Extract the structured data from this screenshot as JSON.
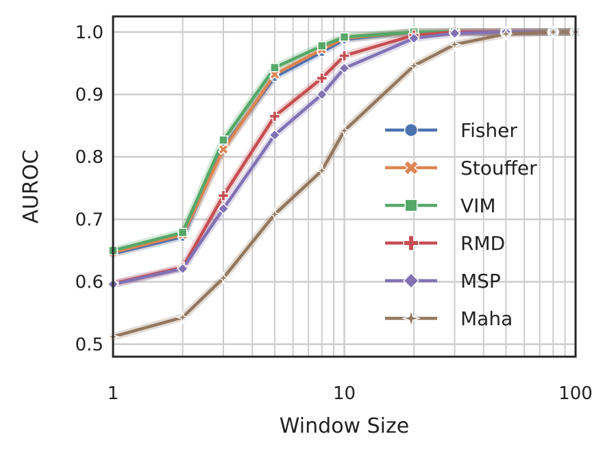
{
  "chart_data": {
    "type": "line",
    "xlabel": "Window Size",
    "ylabel": "AUROC",
    "xscale": "log",
    "xlim": [
      1,
      100
    ],
    "ylim": [
      0.48,
      1.025
    ],
    "xticks": [
      1,
      10,
      100
    ],
    "xtick_labels": [
      "1",
      "10",
      "100"
    ],
    "yticks": [
      0.5,
      0.6,
      0.7,
      0.8,
      0.9,
      1.0
    ],
    "ytick_labels": [
      "0.5",
      "0.6",
      "0.7",
      "0.8",
      "0.9",
      "1.0"
    ],
    "grid": true,
    "legend": "lower-right",
    "series": [
      {
        "name": "Fisher",
        "color": "#4c72b0",
        "marker": "circle",
        "x": [
          1,
          2,
          3,
          5,
          8,
          10,
          20,
          30,
          50,
          80,
          100
        ],
        "y": [
          0.645,
          0.672,
          0.815,
          0.928,
          0.968,
          0.988,
          1.0,
          1.0,
          1.0,
          1.0,
          1.0
        ]
      },
      {
        "name": "Stouffer",
        "color": "#dd8452",
        "marker": "x",
        "x": [
          1,
          2,
          3,
          5,
          8,
          10,
          20,
          30,
          50,
          80,
          100
        ],
        "y": [
          0.647,
          0.675,
          0.812,
          0.932,
          0.972,
          0.99,
          1.0,
          1.0,
          1.0,
          1.0,
          1.0
        ]
      },
      {
        "name": "VIM",
        "color": "#55a868",
        "marker": "square",
        "x": [
          1,
          2,
          3,
          5,
          8,
          10,
          20,
          30,
          50,
          80,
          100
        ],
        "y": [
          0.65,
          0.679,
          0.827,
          0.943,
          0.978,
          0.992,
          1.0,
          1.0,
          1.0,
          1.0,
          1.0
        ]
      },
      {
        "name": "RMD",
        "color": "#c44e52",
        "marker": "plus",
        "x": [
          1,
          2,
          3,
          5,
          8,
          10,
          20,
          30,
          50,
          80,
          100
        ],
        "y": [
          0.597,
          0.623,
          0.738,
          0.865,
          0.926,
          0.962,
          0.995,
          1.0,
          1.0,
          1.0,
          1.0
        ]
      },
      {
        "name": "MSP",
        "color": "#8172b3",
        "marker": "diamond",
        "x": [
          1,
          2,
          3,
          5,
          8,
          10,
          20,
          30,
          50,
          80,
          100
        ],
        "y": [
          0.596,
          0.621,
          0.717,
          0.835,
          0.9,
          0.942,
          0.99,
          0.998,
          1.0,
          1.0,
          1.0
        ]
      },
      {
        "name": "Maha",
        "color": "#937860",
        "marker": "star",
        "x": [
          1,
          2,
          3,
          5,
          8,
          10,
          20,
          30,
          50,
          80,
          100
        ],
        "y": [
          0.512,
          0.543,
          0.606,
          0.708,
          0.778,
          0.842,
          0.946,
          0.98,
          0.997,
          1.0,
          1.0
        ]
      }
    ]
  }
}
